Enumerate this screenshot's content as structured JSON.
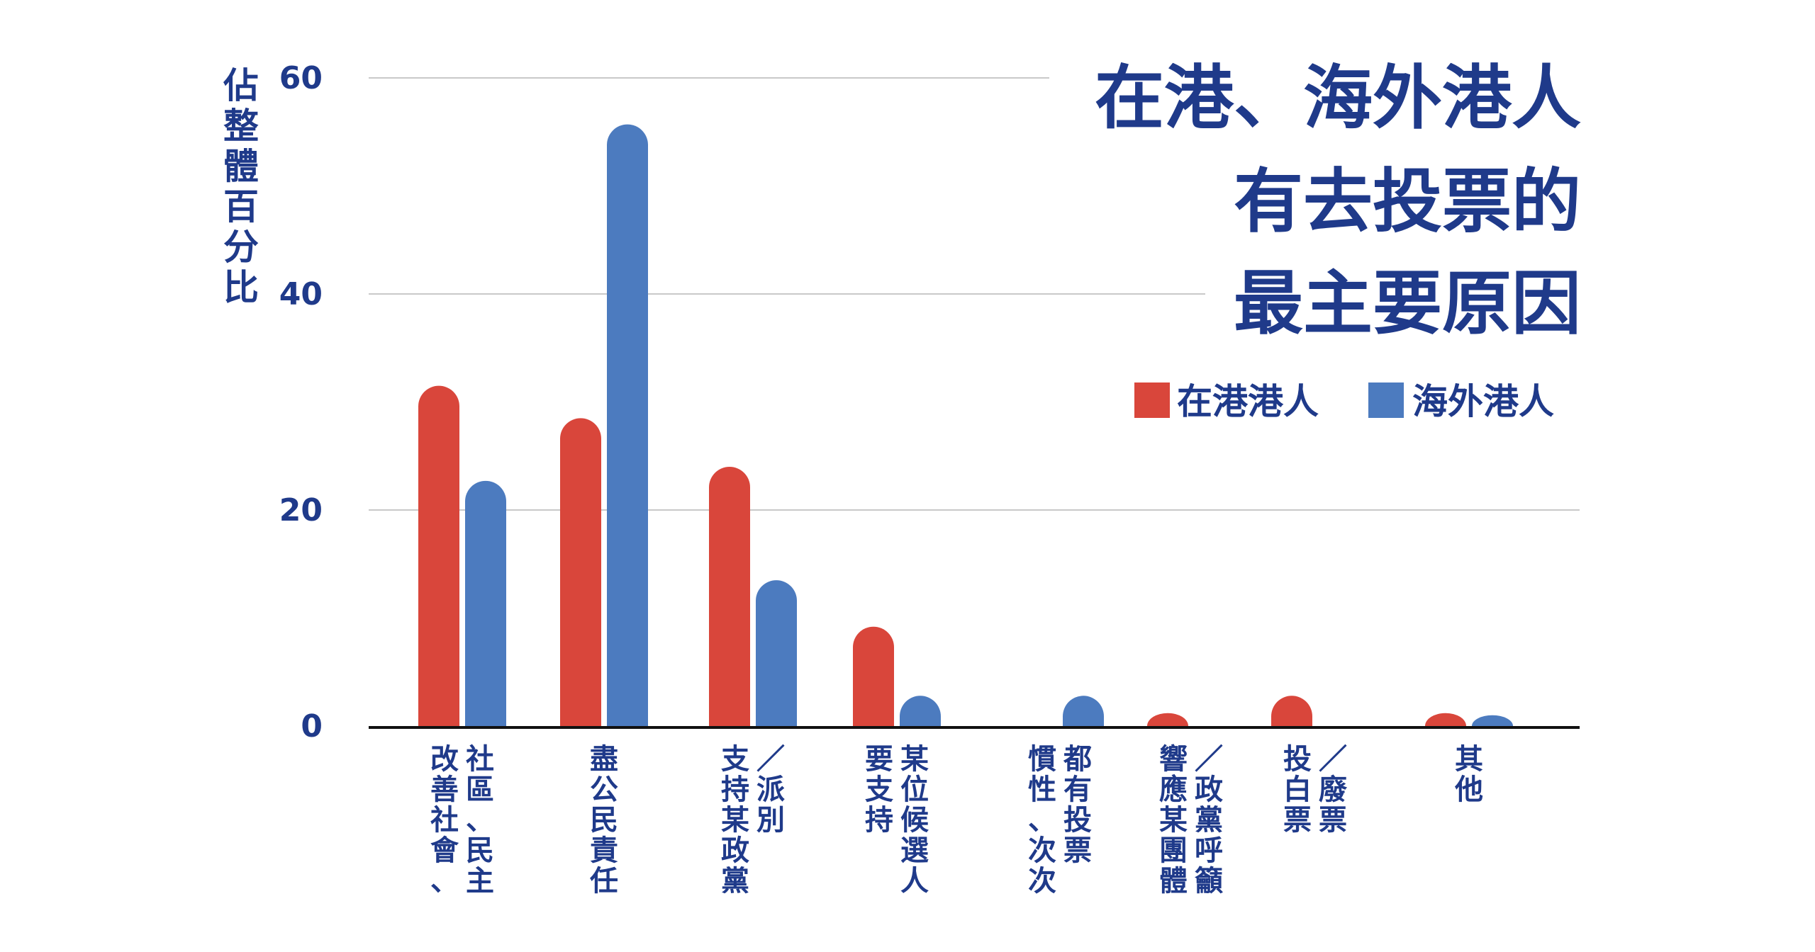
{
  "chart_data": {
    "type": "bar",
    "title": [
      "在港、海外港人",
      "有去投票的",
      "最主要原因"
    ],
    "ylabel": "佔整體百分比",
    "ylim": [
      0,
      60
    ],
    "yticks": [
      0,
      20,
      40,
      60
    ],
    "grid": true,
    "legend_position": "top-right",
    "categories": [
      [
        "社區、民主",
        "改善社會、"
      ],
      [
        "盡公民責任"
      ],
      [
        "／派別",
        "支持某政黨"
      ],
      [
        "某位候選人",
        "要支持"
      ],
      [
        "都有投票",
        "慣性、次次"
      ],
      [
        "／政黨呼籲",
        "響應某團體"
      ],
      [
        "／廢票",
        "投白票"
      ],
      [
        "其他"
      ]
    ],
    "series": [
      {
        "name": "在港港人",
        "color": "#d9463b",
        "values": [
          31.5,
          28.5,
          24,
          9.2,
          0,
          1.2,
          2.8,
          1.2
        ]
      },
      {
        "name": "海外港人",
        "color": "#4c7bbf",
        "values": [
          22.7,
          55.7,
          13.5,
          2.8,
          2.8,
          0,
          0,
          1.0
        ]
      }
    ]
  }
}
